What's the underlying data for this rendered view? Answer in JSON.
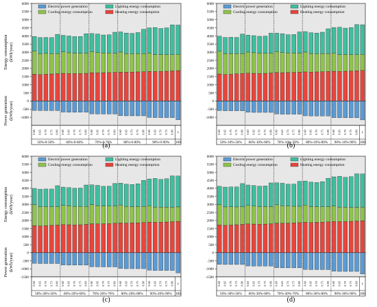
{
  "colors": {
    "electric": "#5b9bd5",
    "lighting": "#3fbf9f",
    "cooling": "#8ec449",
    "heating": "#e8453c",
    "panel_bg": "#e7e7e7"
  },
  "chart_data": [
    {
      "type": "bar",
      "stacked": true,
      "panel": "(a)",
      "ylabel_top": "Energy consumption",
      "ylabel_top_unit": "(kWh/year)",
      "ylabel_bottom": "Power generation",
      "ylabel_bottom_unit": "(kWh/year)",
      "ylim": [
        -1500,
        6000
      ],
      "yticks": [
        -1000,
        -500,
        0,
        500,
        1000,
        1500,
        2000,
        2500,
        3000,
        3500,
        4000,
        4500,
        5000,
        5500,
        6000
      ],
      "legend": [
        "Electric power generation",
        "Lighting energy consumption",
        "Cooling energy consumption",
        "Heating energy consumption"
      ],
      "categories": [
        "0.60",
        "0.65",
        "0.70",
        "0.75",
        "0.80",
        "0.60",
        "0.65",
        "0.70",
        "0.75",
        "0.80",
        "0.60",
        "0.65",
        "0.70",
        "0.75",
        "0.80",
        "0.60",
        "0.65",
        "0.70",
        "0.75",
        "0.80",
        "0.60",
        "0.65",
        "0.70",
        "0.75",
        "0.80",
        "∞"
      ],
      "groups": [
        "50%-0-50%",
        "60%-0-60%",
        "70%-0-70%",
        "80%-0-80%",
        "90%-0-90%",
        "100"
      ],
      "series": [
        {
          "name": "Heating energy consumption",
          "values": [
            1650,
            1620,
            1640,
            1660,
            1680,
            1700,
            1690,
            1680,
            1690,
            1700,
            1740,
            1730,
            1740,
            1750,
            1760,
            1780,
            1770,
            1780,
            1790,
            1800,
            1820,
            1810,
            1820,
            1830,
            1850,
            1870
          ]
        },
        {
          "name": "Cooling energy consumption",
          "values": [
            1420,
            1300,
            1290,
            1250,
            1240,
            1320,
            1280,
            1260,
            1250,
            1230,
            1300,
            1250,
            1220,
            1200,
            1180,
            1230,
            1150,
            1130,
            1120,
            1110,
            1130,
            1050,
            1040,
            1020,
            1000,
            1000
          ]
        },
        {
          "name": "Lighting energy consumption",
          "values": [
            900,
            980,
            980,
            990,
            1180,
            1020,
            1030,
            1020,
            1030,
            1210,
            1110,
            1140,
            1100,
            1120,
            1290,
            1240,
            1260,
            1250,
            1300,
            1500,
            1550,
            1660,
            1600,
            1650,
            1830,
            1800
          ]
        },
        {
          "name": "Electric power generation",
          "values": [
            -580,
            -590,
            -590,
            -590,
            -590,
            -680,
            -690,
            -690,
            -690,
            -690,
            -790,
            -800,
            -800,
            -800,
            -800,
            -900,
            -910,
            -910,
            -910,
            -910,
            -1010,
            -1020,
            -1020,
            -1020,
            -1020,
            -1150
          ]
        }
      ]
    },
    {
      "type": "bar",
      "stacked": true,
      "panel": "(b)",
      "ylabel_top": "",
      "ylabel_top_unit": "",
      "ylabel_bottom": "",
      "ylabel_bottom_unit": "",
      "ylim": [
        -1500,
        6000
      ],
      "yticks": [
        -1000,
        -500,
        0,
        500,
        1000,
        1500,
        2000,
        2500,
        3000,
        3500,
        4000,
        4500,
        5000,
        5500,
        6000
      ],
      "legend": [
        "Electric power generation",
        "Lighting energy consumption",
        "Cooling energy consumption",
        "Heating energy consumption"
      ],
      "categories": [
        "0.60",
        "0.65",
        "0.70",
        "0.75",
        "0.80",
        "0.60",
        "0.65",
        "0.70",
        "0.75",
        "0.80",
        "0.60",
        "0.65",
        "0.70",
        "0.75",
        "0.80",
        "0.60",
        "0.65",
        "0.70",
        "0.75",
        "0.80",
        "0.60",
        "0.65",
        "0.70",
        "0.75",
        "0.80",
        "∞"
      ],
      "groups": [
        "50%-10%-50%",
        "60%-10%-60%",
        "70%-10%-70%",
        "80%-10%-80%",
        "90%-10%-90%",
        "100"
      ],
      "series": [
        {
          "name": "Heating energy consumption",
          "values": [
            1660,
            1630,
            1650,
            1670,
            1690,
            1710,
            1700,
            1690,
            1700,
            1720,
            1750,
            1740,
            1750,
            1760,
            1770,
            1790,
            1780,
            1790,
            1800,
            1820,
            1830,
            1820,
            1830,
            1840,
            1860,
            1880
          ]
        },
        {
          "name": "Cooling energy consumption",
          "values": [
            1400,
            1290,
            1270,
            1240,
            1230,
            1300,
            1270,
            1250,
            1240,
            1220,
            1290,
            1240,
            1210,
            1190,
            1170,
            1220,
            1140,
            1120,
            1110,
            1100,
            1120,
            1040,
            1030,
            1010,
            990,
            990
          ]
        },
        {
          "name": "Lighting energy consumption",
          "values": [
            930,
            990,
            1000,
            1000,
            1200,
            1040,
            1050,
            1040,
            1050,
            1230,
            1130,
            1160,
            1120,
            1140,
            1310,
            1260,
            1280,
            1270,
            1320,
            1520,
            1570,
            1680,
            1620,
            1670,
            1850,
            1820
          ]
        },
        {
          "name": "Electric power generation",
          "values": [
            -590,
            -600,
            -600,
            -600,
            -600,
            -690,
            -700,
            -700,
            -700,
            -700,
            -800,
            -810,
            -810,
            -810,
            -810,
            -910,
            -920,
            -920,
            -920,
            -920,
            -1020,
            -1030,
            -1030,
            -1030,
            -1030,
            -1160
          ]
        }
      ]
    },
    {
      "type": "bar",
      "stacked": true,
      "panel": "(c)",
      "ylabel_top": "Energy consumption",
      "ylabel_top_unit": "(kWh/year)",
      "ylabel_bottom": "Power generation",
      "ylabel_bottom_unit": "(kWh/year)",
      "ylim": [
        -1500,
        6000
      ],
      "yticks": [
        -1500,
        -1000,
        -500,
        0,
        500,
        1000,
        1500,
        2000,
        2500,
        3000,
        3500,
        4000,
        4500,
        5000,
        5500,
        6000
      ],
      "legend": [
        "Electric power generation",
        "Lighting energy consumption",
        "Cooling energy consumption",
        "Heating energy consumption"
      ],
      "categories": [
        "0.60",
        "0.65",
        "0.70",
        "0.75",
        "0.80",
        "0.60",
        "0.65",
        "0.70",
        "0.75",
        "0.80",
        "0.60",
        "0.65",
        "0.70",
        "0.75",
        "0.80",
        "0.60",
        "0.65",
        "0.70",
        "0.75",
        "0.80",
        "0.60",
        "0.65",
        "0.70",
        "0.75",
        "0.80",
        "∞"
      ],
      "groups": [
        "50%-20%-50%",
        "60%-20%-60%",
        "70%-20%-70%",
        "80%-20%-80%",
        "90%-20%-90%",
        "100"
      ],
      "series": [
        {
          "name": "Heating energy consumption",
          "values": [
            1690,
            1660,
            1680,
            1700,
            1720,
            1750,
            1740,
            1730,
            1740,
            1760,
            1800,
            1790,
            1800,
            1810,
            1830,
            1850,
            1840,
            1850,
            1860,
            1880,
            1900,
            1890,
            1900,
            1910,
            1930,
            1950
          ]
        },
        {
          "name": "Cooling energy consumption",
          "values": [
            1300,
            1200,
            1190,
            1160,
            1150,
            1200,
            1170,
            1150,
            1140,
            1120,
            1190,
            1140,
            1110,
            1090,
            1070,
            1120,
            1040,
            1020,
            1010,
            1000,
            1020,
            950,
            940,
            920,
            900,
            900
          ]
        },
        {
          "name": "Lighting energy consumption",
          "values": [
            1010,
            1090,
            1090,
            1100,
            1300,
            1130,
            1140,
            1130,
            1140,
            1330,
            1230,
            1260,
            1220,
            1240,
            1410,
            1360,
            1380,
            1370,
            1420,
            1620,
            1670,
            1780,
            1720,
            1770,
            1950,
            1920
          ]
        },
        {
          "name": "Electric power generation",
          "values": [
            -660,
            -670,
            -670,
            -670,
            -670,
            -760,
            -770,
            -770,
            -770,
            -770,
            -870,
            -880,
            -880,
            -880,
            -880,
            -980,
            -990,
            -990,
            -990,
            -990,
            -1090,
            -1100,
            -1100,
            -1100,
            -1100,
            -1250
          ]
        }
      ]
    },
    {
      "type": "bar",
      "stacked": true,
      "panel": "(d)",
      "ylabel_top": "",
      "ylabel_top_unit": "",
      "ylabel_bottom": "",
      "ylabel_bottom_unit": "",
      "ylim": [
        -1500,
        6000
      ],
      "yticks": [
        -1500,
        -1000,
        -500,
        0,
        500,
        1000,
        1500,
        2000,
        2500,
        3000,
        3500,
        4000,
        4500,
        5000,
        5500,
        6000
      ],
      "legend": [
        "Electric power generation",
        "Lighting energy consumption",
        "Cooling energy consumption",
        "Heating energy consumption"
      ],
      "categories": [
        "0.60",
        "0.65",
        "0.70",
        "0.75",
        "0.80",
        "0.60",
        "0.65",
        "0.70",
        "0.75",
        "0.80",
        "0.60",
        "0.65",
        "0.70",
        "0.75",
        "0.80",
        "0.60",
        "0.65",
        "0.70",
        "0.75",
        "0.80",
        "0.60",
        "0.65",
        "0.70",
        "0.75",
        "0.80",
        "∞"
      ],
      "groups": [
        "50%-30%-50%",
        "60%-30%-60%",
        "70%-30%-70%",
        "80%-30%-80%",
        "90%-30%-90%",
        "100"
      ],
      "series": [
        {
          "name": "Heating energy consumption",
          "values": [
            1730,
            1700,
            1720,
            1740,
            1760,
            1790,
            1780,
            1770,
            1780,
            1800,
            1840,
            1830,
            1840,
            1850,
            1870,
            1890,
            1880,
            1890,
            1900,
            1920,
            1940,
            1930,
            1940,
            1950,
            1970,
            1990
          ]
        },
        {
          "name": "Cooling energy consumption",
          "values": [
            1250,
            1150,
            1140,
            1110,
            1100,
            1150,
            1120,
            1100,
            1090,
            1070,
            1140,
            1090,
            1060,
            1040,
            1020,
            1070,
            990,
            970,
            960,
            950,
            970,
            900,
            890,
            870,
            850,
            850
          ]
        },
        {
          "name": "Lighting energy consumption",
          "values": [
            1150,
            1230,
            1230,
            1240,
            1440,
            1270,
            1280,
            1270,
            1280,
            1470,
            1370,
            1400,
            1360,
            1380,
            1550,
            1500,
            1520,
            1510,
            1560,
            1760,
            1810,
            1920,
            1860,
            1910,
            2090,
            2060
          ]
        },
        {
          "name": "Electric power generation",
          "values": [
            -720,
            -730,
            -730,
            -730,
            -730,
            -820,
            -830,
            -830,
            -830,
            -830,
            -930,
            -940,
            -940,
            -940,
            -940,
            -1040,
            -1050,
            -1050,
            -1050,
            -1050,
            -1150,
            -1160,
            -1160,
            -1160,
            -1160,
            -1320
          ]
        }
      ]
    }
  ]
}
